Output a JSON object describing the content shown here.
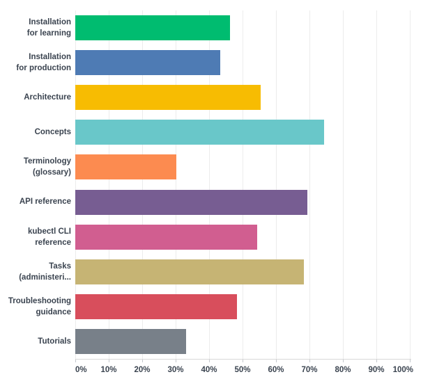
{
  "chart_data": {
    "type": "bar",
    "orientation": "horizontal",
    "categories": [
      "Installation\nfor learning",
      "Installation\nfor production",
      "Architecture",
      "Concepts",
      "Terminology\n(glossary)",
      "API reference",
      "kubectl CLI\nreference",
      "Tasks\n(administeri...",
      "Troubleshooting\nguidance",
      "Tutorials"
    ],
    "values": [
      46.3,
      43.3,
      55.4,
      74.4,
      30.3,
      69.4,
      54.4,
      68.3,
      48.3,
      33.2
    ],
    "bar_colors": [
      "#00BC70",
      "#4E7BB4",
      "#F7BC02",
      "#69C7C9",
      "#FC8B50",
      "#775D92",
      "#D15E90",
      "#C6B474",
      "#D84E5C",
      "#788089"
    ],
    "x_tick_labels": [
      "0%",
      "10%",
      "20%",
      "30%",
      "40%",
      "50%",
      "60%",
      "70%",
      "80%",
      "90%",
      "100%"
    ],
    "x_tick_values": [
      0,
      10,
      20,
      30,
      40,
      50,
      60,
      70,
      80,
      90,
      100
    ],
    "xlim": [
      0,
      100
    ],
    "grid": "vertical",
    "legend": "none",
    "colors": {
      "background": "#ffffff",
      "gridline": "#ececec",
      "axis_line": "#d7d7d7",
      "tick_mark": "#c4c8cd",
      "label_text": "#3b4450"
    }
  }
}
